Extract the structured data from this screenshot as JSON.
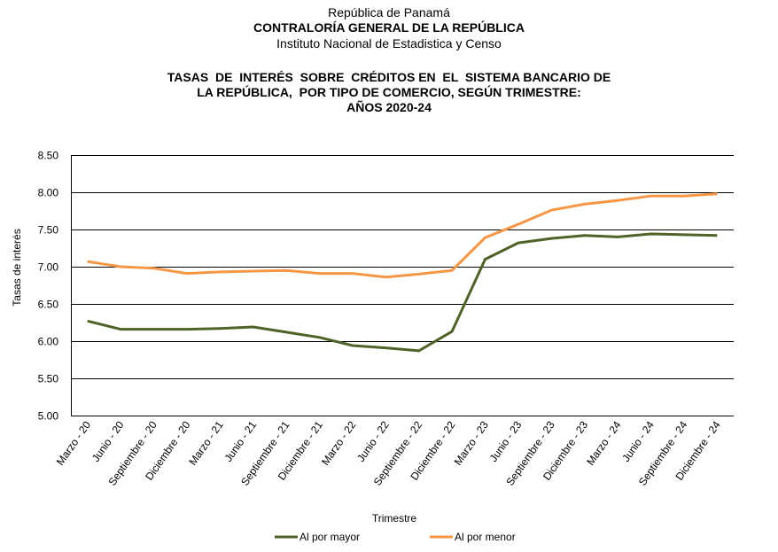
{
  "header": {
    "country": "República de Panamá",
    "institution": "CONTRALORÍA GENERAL DE LA REPÚBLICA",
    "institute": "Instituto  Nacional de Estadistica y Censo"
  },
  "chart_data": {
    "type": "line",
    "title_lines": [
      "TASAS  DE  INTERÉS  SOBRE  CRÉDITOS EN  EL  SISTEMA BANCARIO DE",
      "LA REPÚBLICA,  POR TIPO DE COMERCIO, SEGÚN TRIMESTRE:",
      "AÑOS 2020-24"
    ],
    "xlabel": "Trimestre",
    "ylabel": "Tasas de interés",
    "ylim": [
      5.0,
      8.5
    ],
    "yticks": [
      "5.00",
      "5.50",
      "6.00",
      "6.50",
      "7.00",
      "7.50",
      "8.00",
      "8.50"
    ],
    "ytick_values": [
      5.0,
      5.5,
      6.0,
      6.5,
      7.0,
      7.5,
      8.0,
      8.5
    ],
    "grid": true,
    "legend_position": "bottom",
    "categories": [
      "Marzo - 20",
      "Junio - 20",
      "Septiembre - 20",
      "Diciembre - 20",
      "Marzo - 21",
      "Junio - 21",
      "Septiembre - 21",
      "Diciembre - 21",
      "Marzo - 22",
      "Junio - 22",
      "Septiembre - 22",
      "Diciembre - 22",
      "Marzo - 23",
      "Junio - 23",
      "Septiembre - 23",
      "Diciembre - 23",
      "Marzo - 24",
      "Junio - 24",
      "Septiembre - 24",
      "Diciembre - 24"
    ],
    "series": [
      {
        "name": "Al por mayor",
        "color": "#4F6228",
        "values": [
          6.27,
          6.16,
          6.16,
          6.16,
          6.17,
          6.19,
          6.12,
          6.05,
          5.94,
          5.91,
          5.87,
          6.13,
          7.1,
          7.32,
          7.38,
          7.42,
          7.4,
          7.44,
          7.43,
          7.42
        ]
      },
      {
        "name": "Al por menor",
        "color": "#F79646",
        "values": [
          7.07,
          7.0,
          6.98,
          6.91,
          6.93,
          6.94,
          6.95,
          6.91,
          6.91,
          6.86,
          6.9,
          6.95,
          7.39,
          7.57,
          7.76,
          7.84,
          7.89,
          7.95,
          7.95,
          7.98
        ]
      }
    ]
  }
}
